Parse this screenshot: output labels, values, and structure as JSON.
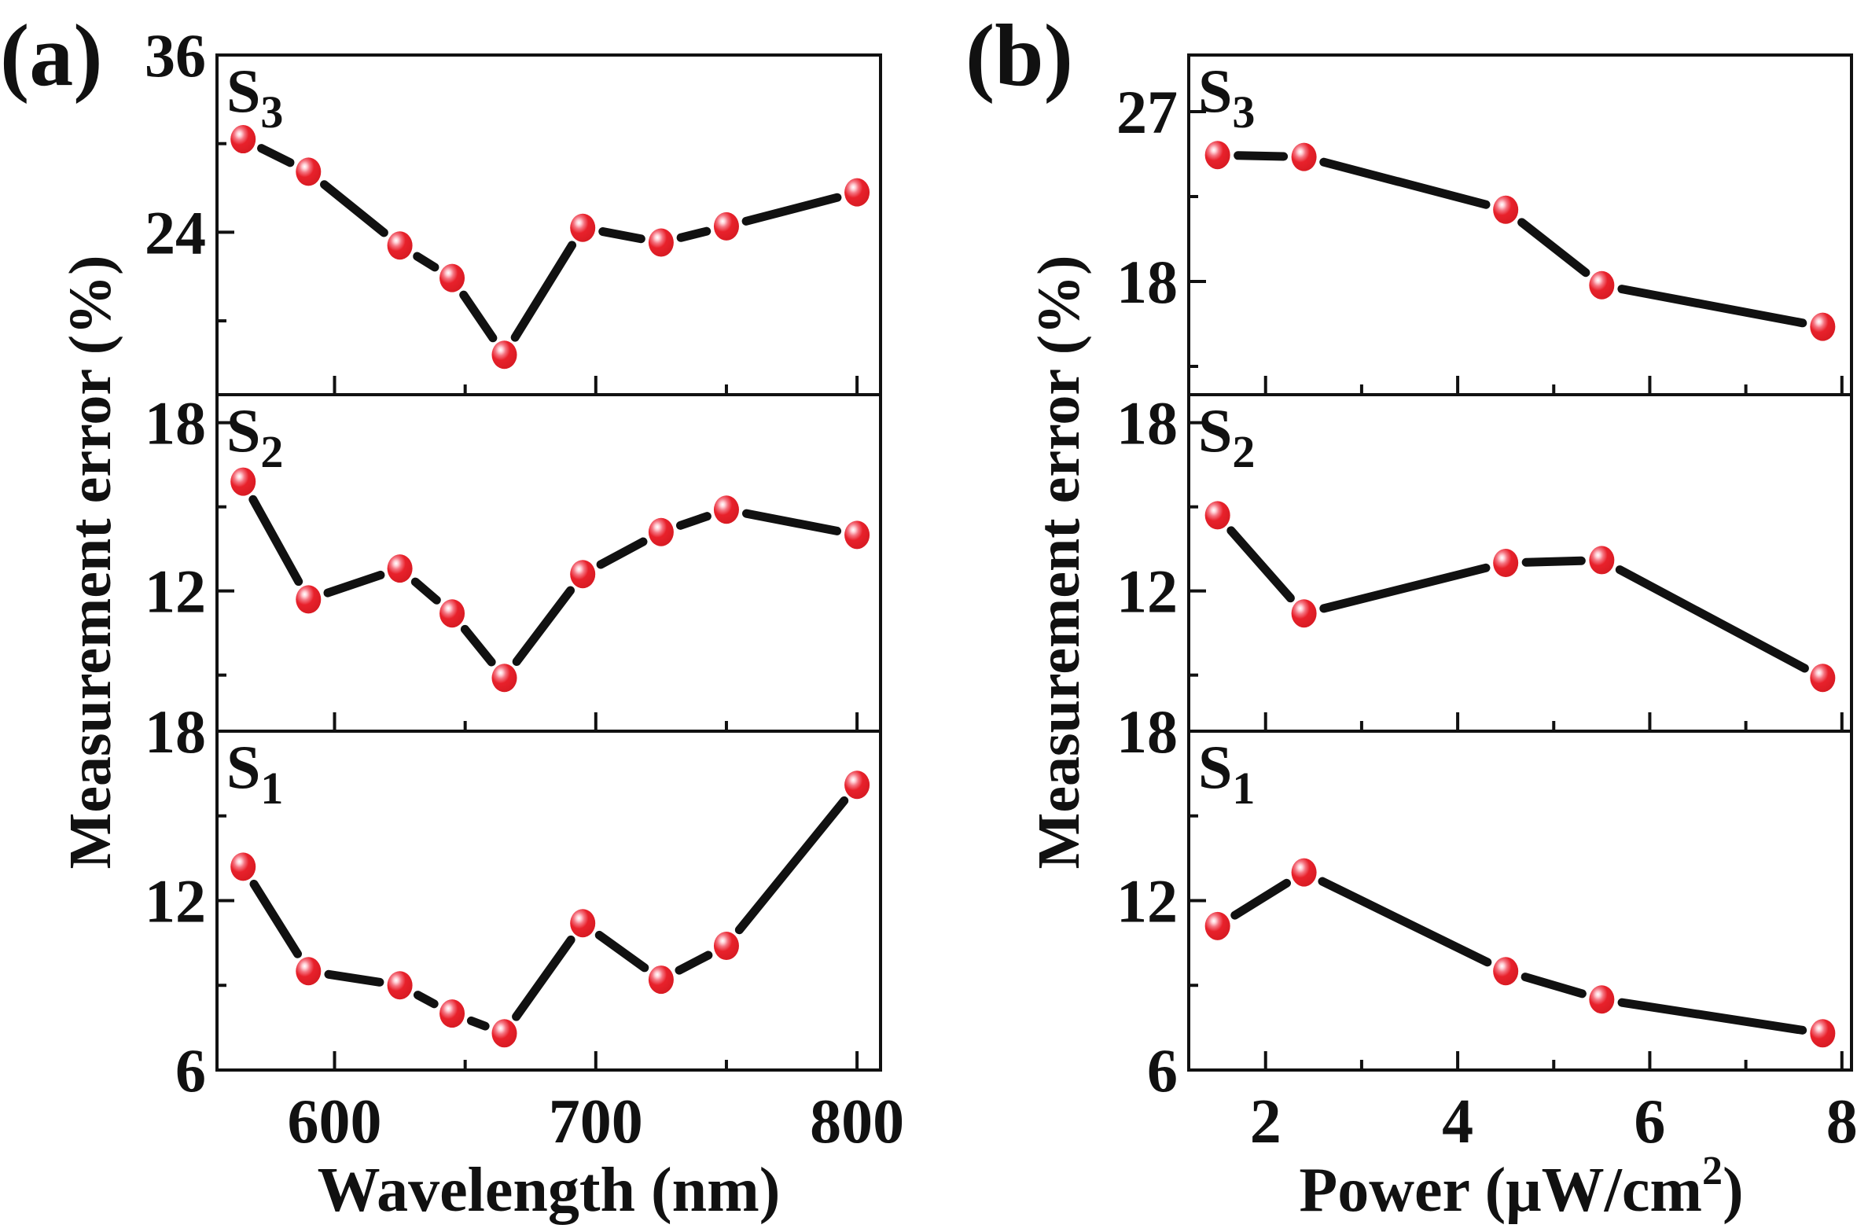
{
  "figure": {
    "panels": [
      {
        "id": "a",
        "label": "(a)",
        "xlabel": "Wavelength (nm)",
        "ylabel": "Measurement error (%)",
        "xlim": [
          555,
          809
        ],
        "xticks_major": [
          600,
          700,
          800
        ],
        "xticks_minor": [
          650,
          750
        ],
        "xtick_labels": [
          "600",
          "700",
          "800"
        ]
      },
      {
        "id": "b",
        "label": "(b)",
        "xlabel_main": "Power (μW/cm",
        "xlabel_sup": "2",
        "xlabel_close": ")",
        "ylabel": "Measurement error (%)",
        "xlim": [
          1.2,
          8.1
        ],
        "xticks_major": [
          2,
          4,
          6,
          8
        ],
        "xticks_minor": [
          3,
          5,
          7
        ],
        "xtick_labels": [
          "2",
          "4",
          "6",
          "8"
        ]
      }
    ],
    "colors": {
      "marker": "#e8212b",
      "marker_highlight": "#ffffff",
      "line": "#111111",
      "axis": "#111111"
    }
  },
  "chart_data": [
    {
      "type": "line",
      "panel": "a",
      "title": "(a)",
      "xlabel": "Wavelength (nm)",
      "ylabel": "Measurement error (%)",
      "x": [
        565,
        590,
        625,
        645,
        665,
        695,
        725,
        750,
        800
      ],
      "subplots": [
        {
          "name": "S3",
          "label_main": "S",
          "label_sub": "3",
          "ylim": [
            13,
            36
          ],
          "yticks_major": [
            24,
            36
          ],
          "yticks_minor": [
            18,
            30
          ],
          "ytick_labels": [
            {
              "value": 36,
              "text": "36"
            },
            {
              "value": 24,
              "text": "24"
            }
          ],
          "values": [
            30.3,
            28.1,
            23.1,
            20.9,
            15.7,
            24.3,
            23.3,
            24.4,
            26.7
          ]
        },
        {
          "name": "S2",
          "label_main": "S",
          "label_sub": "2",
          "ylim": [
            7,
            19
          ],
          "yticks_major": [
            12,
            18
          ],
          "yticks_minor": [
            9,
            15
          ],
          "ytick_labels": [
            {
              "value": 18,
              "text": "18"
            },
            {
              "value": 12,
              "text": "12"
            }
          ],
          "values": [
            15.9,
            11.7,
            12.8,
            11.2,
            8.9,
            12.6,
            14.1,
            14.9,
            14.0
          ]
        },
        {
          "name": "S1",
          "label_main": "S",
          "label_sub": "1",
          "ylim": [
            6,
            18
          ],
          "yticks_major": [
            6,
            12,
            18
          ],
          "yticks_minor": [
            9,
            15
          ],
          "ytick_labels": [
            {
              "value": 18,
              "text": "18"
            },
            {
              "value": 12,
              "text": "12"
            },
            {
              "value": 6,
              "text": "6"
            }
          ],
          "values": [
            13.2,
            9.5,
            9.0,
            8.0,
            7.3,
            11.2,
            9.2,
            10.4,
            16.1
          ]
        }
      ]
    },
    {
      "type": "line",
      "panel": "b",
      "title": "(b)",
      "xlabel": "Power (μW/cm²)",
      "ylabel": "Measurement error (%)",
      "x": [
        1.5,
        2.4,
        4.5,
        5.5,
        7.8
      ],
      "subplots": [
        {
          "name": "S3",
          "label_main": "S",
          "label_sub": "3",
          "ylim": [
            12,
            30
          ],
          "yticks_major": [
            18,
            27
          ],
          "yticks_minor": [
            13.5,
            22.5
          ],
          "ytick_labels": [
            {
              "value": 27,
              "text": "27"
            },
            {
              "value": 18,
              "text": "18"
            }
          ],
          "values": [
            24.7,
            24.6,
            21.8,
            17.8,
            15.6
          ]
        },
        {
          "name": "S2",
          "label_main": "S",
          "label_sub": "2",
          "ylim": [
            7,
            19
          ],
          "yticks_major": [
            12,
            18
          ],
          "yticks_minor": [
            9,
            15
          ],
          "ytick_labels": [
            {
              "value": 18,
              "text": "18"
            },
            {
              "value": 12,
              "text": "12"
            }
          ],
          "values": [
            14.7,
            11.2,
            13.0,
            13.1,
            8.9
          ]
        },
        {
          "name": "S1",
          "label_main": "S",
          "label_sub": "1",
          "ylim": [
            6,
            18
          ],
          "yticks_major": [
            6,
            12,
            18
          ],
          "yticks_minor": [
            9,
            15
          ],
          "ytick_labels": [
            {
              "value": 18,
              "text": "18"
            },
            {
              "value": 12,
              "text": "12"
            },
            {
              "value": 6,
              "text": "6"
            }
          ],
          "values": [
            11.1,
            13.0,
            9.5,
            8.5,
            7.3
          ]
        }
      ]
    }
  ]
}
